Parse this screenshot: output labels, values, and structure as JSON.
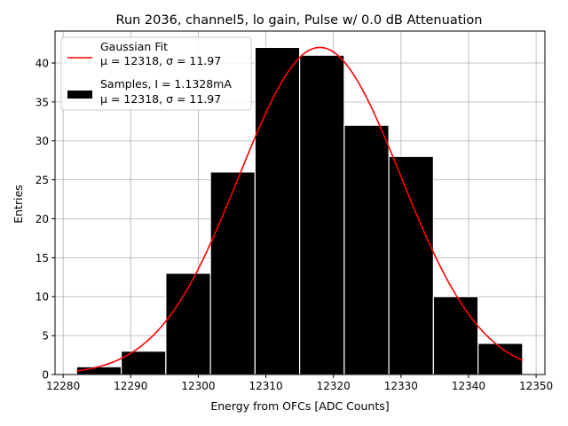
{
  "chart_data": {
    "type": "bar",
    "title": "Run 2036, channel5, lo gain, Pulse w/ 0.0 dB Attenuation",
    "xlabel": "Energy from OFCs [ADC Counts]",
    "ylabel": "Entries",
    "xlim": [
      12278.8,
      12351.3
    ],
    "ylim": [
      0,
      44.1
    ],
    "xticks": [
      12280,
      12290,
      12300,
      12310,
      12320,
      12330,
      12340,
      12350
    ],
    "yticks": [
      0,
      5,
      10,
      15,
      20,
      25,
      30,
      35,
      40
    ],
    "grid": true,
    "legend_position": "top-left",
    "bins": [
      {
        "x0": 12282,
        "x1": 12288.6,
        "count": 1
      },
      {
        "x0": 12288.6,
        "x1": 12295.2,
        "count": 3
      },
      {
        "x0": 12295.2,
        "x1": 12301.8,
        "count": 13
      },
      {
        "x0": 12301.8,
        "x1": 12308.4,
        "count": 26
      },
      {
        "x0": 12308.4,
        "x1": 12315.0,
        "count": 42
      },
      {
        "x0": 12315.0,
        "x1": 12321.6,
        "count": 41
      },
      {
        "x0": 12321.6,
        "x1": 12328.2,
        "count": 32
      },
      {
        "x0": 12328.2,
        "x1": 12334.8,
        "count": 28
      },
      {
        "x0": 12334.8,
        "x1": 12341.4,
        "count": 10
      },
      {
        "x0": 12341.4,
        "x1": 12348.0,
        "count": 4
      }
    ],
    "series": [
      {
        "name": "Gaussian Fit",
        "kind": "line",
        "color": "#ff0000",
        "mu": 12318,
        "sigma": 11.97,
        "amplitude": 42,
        "x_range": [
          12282,
          12348
        ]
      },
      {
        "name": "Samples, I = 1.1328mA",
        "kind": "histogram",
        "color": "#000000"
      }
    ],
    "legend": [
      {
        "line1": "Gaussian Fit",
        "line2": "μ = 12318, σ = 11.97",
        "swatch": "line",
        "color": "#ff0000"
      },
      {
        "line1": "Samples, I = 1.1328mA",
        "line2": "μ = 12318, σ = 11.97",
        "swatch": "box",
        "color": "#000000"
      }
    ]
  }
}
